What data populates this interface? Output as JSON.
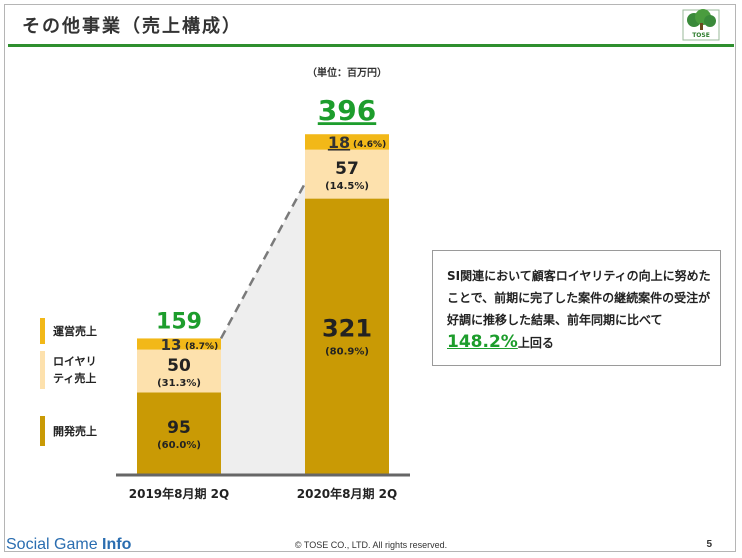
{
  "slide": {
    "title": "その他事業（売上構成）",
    "logo_text": "TOSE",
    "page_number": "5",
    "footer_copyright": "© TOSE CO., LTD. All rights reserved.",
    "brand": {
      "part1": "Social Game ",
      "part2": "Info"
    }
  },
  "legend": [
    {
      "label": "運営売上",
      "color": "#f2b818"
    },
    {
      "label": "ロイヤリ ティ売上",
      "color": "#fde1ad"
    },
    {
      "label": "開発売上",
      "color": "#c99a05"
    }
  ],
  "note": {
    "before": "SI関連において顧客ロイヤリティの向上に努めたことで、前期に完了した案件の継続案件の受注が好調に推移した結果、前年同期に比べて",
    "highlight": "148.2%",
    "after": "上回る"
  },
  "chart_data": {
    "type": "bar",
    "stacked": true,
    "unit_label": "（単位：百万円）",
    "categories": [
      "2019年8月期 2Q",
      "2020年8月期 2Q"
    ],
    "totals": [
      "159",
      "396"
    ],
    "series": [
      {
        "name": "開発売上",
        "color": "#c99a05",
        "values": [
          95,
          321
        ],
        "value_labels": [
          "95",
          "321"
        ],
        "pct_labels": [
          "(60.0%)",
          "(80.9%)"
        ]
      },
      {
        "name": "ロイヤリティ売上",
        "color": "#fde1ad",
        "values": [
          50,
          57
        ],
        "value_labels": [
          "50",
          "57"
        ],
        "pct_labels": [
          "(31.3%)",
          "(14.5%)"
        ]
      },
      {
        "name": "運営売上",
        "color": "#f2b818",
        "values": [
          13,
          18
        ],
        "value_labels": [
          "13",
          "18"
        ],
        "pct_labels": [
          "(8.7%)",
          "(4.6%)"
        ]
      }
    ],
    "colors": {
      "total_label": "#1d9d2c",
      "connector": "#7a7a7a",
      "connector_fill": "#eeeeee",
      "axis": "#666666"
    }
  }
}
